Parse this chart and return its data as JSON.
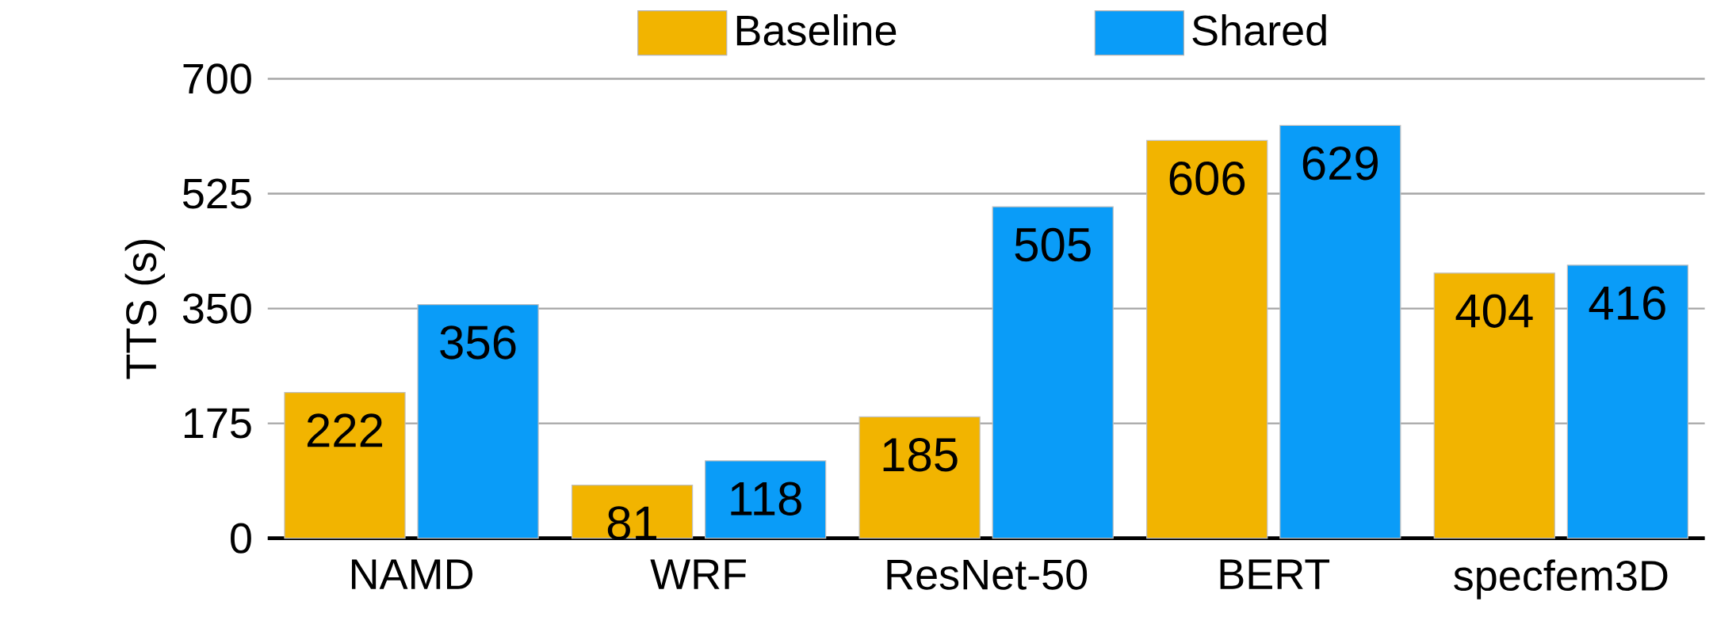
{
  "chart_data": {
    "type": "bar",
    "ylabel": "TTS (s)",
    "categories": [
      "NAMD",
      "WRF",
      "ResNet-50",
      "BERT",
      "specfem3D"
    ],
    "series": [
      {
        "name": "Baseline",
        "color": "#f2b400",
        "values": [
          222,
          81,
          185,
          606,
          404
        ]
      },
      {
        "name": "Shared",
        "color": "#0a9cf8",
        "values": [
          356,
          118,
          505,
          629,
          416
        ]
      }
    ],
    "ylim": [
      0,
      700
    ],
    "yticks": [
      0,
      175,
      350,
      525,
      700
    ],
    "grid": "y",
    "legend": "top",
    "data_labels": true
  }
}
